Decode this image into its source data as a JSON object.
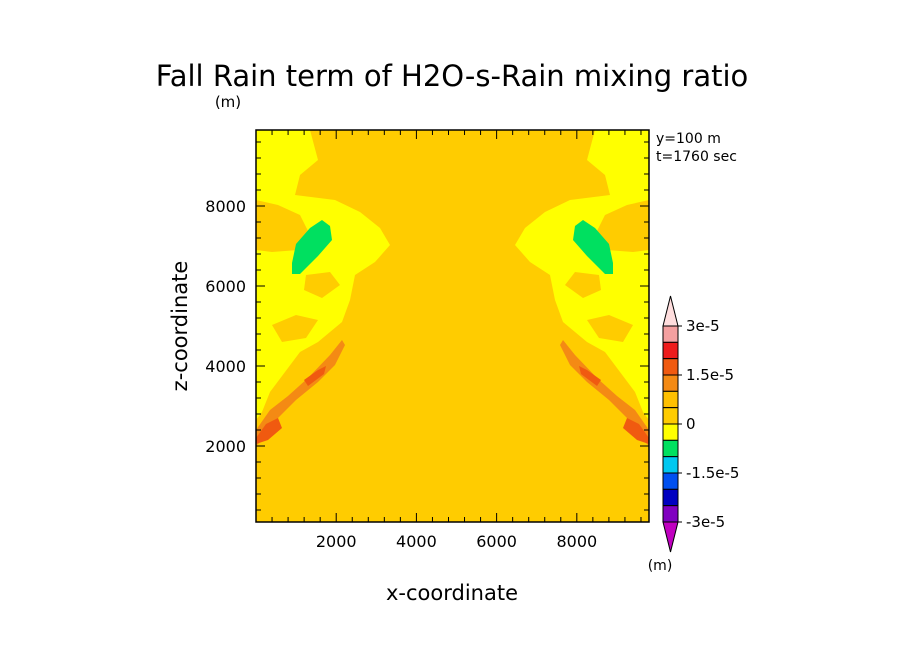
{
  "chart_data": {
    "type": "heatmap",
    "title": "Fall Rain term of H2O-s-Rain mixing ratio",
    "title_unit": "(m)",
    "xlabel": "x-coordinate",
    "ylabel": "z-coordinate",
    "xlim": [
      0,
      9800
    ],
    "ylim": [
      100,
      9900
    ],
    "x_ticks": [
      2000,
      4000,
      6000,
      8000
    ],
    "y_ticks": [
      2000,
      4000,
      6000,
      8000
    ],
    "annotations": [
      "y=100 m",
      "t=1760 sec"
    ],
    "colorbar": {
      "unit": "(m)",
      "labels": [
        {
          "text": "3e-5",
          "value": 3e-05
        },
        {
          "text": "1.5e-5",
          "value": 1.5e-05
        },
        {
          "text": "0",
          "value": 0
        },
        {
          "text": "-1.5e-5",
          "value": -1.5e-05
        },
        {
          "text": "-3e-5",
          "value": -3e-05
        }
      ],
      "levels": [
        {
          "range": [
            3e-05,
            3.5e-05
          ],
          "color": "#ffdede"
        },
        {
          "range": [
            2.5e-05,
            3e-05
          ],
          "color": "#f4a0a0"
        },
        {
          "range": [
            2e-05,
            2.5e-05
          ],
          "color": "#ee1c1c"
        },
        {
          "range": [
            1.5e-05,
            2e-05
          ],
          "color": "#f05a10"
        },
        {
          "range": [
            1e-05,
            1.5e-05
          ],
          "color": "#f48a14"
        },
        {
          "range": [
            5e-06,
            1e-05
          ],
          "color": "#ffc000"
        },
        {
          "range": [
            0,
            5e-06
          ],
          "color": "#ffcc00"
        },
        {
          "range": [
            -5e-06,
            0
          ],
          "color": "#ffff00"
        },
        {
          "range": [
            -1e-05,
            -5e-06
          ],
          "color": "#00e060"
        },
        {
          "range": [
            -1.5e-05,
            -1e-05
          ],
          "color": "#00c8f0"
        },
        {
          "range": [
            -2e-05,
            -1.5e-05
          ],
          "color": "#0050f0"
        },
        {
          "range": [
            -2.5e-05,
            -2e-05
          ],
          "color": "#0000c0"
        },
        {
          "range": [
            -3e-05,
            -2.5e-05
          ],
          "color": "#8000c0"
        },
        {
          "range": [
            -3.5e-05,
            -3e-05
          ],
          "color": "#c000c0"
        }
      ]
    },
    "field_regions": [
      {
        "level": "0 to 5e-6",
        "color": "#ffcc00",
        "description": "background"
      },
      {
        "level": "-5e-6 to 0",
        "color": "#ffff00",
        "description": "upper-left and upper-right shoulders"
      },
      {
        "level": "-1e-5 to -5e-6",
        "color": "#00e060",
        "description": "small cores near x=1500 and x=8300, z=7000"
      },
      {
        "level": "1e-5 to 2e-5",
        "color": "#f05a10",
        "description": "diagonal bands near lower-left and lower-right"
      }
    ]
  }
}
